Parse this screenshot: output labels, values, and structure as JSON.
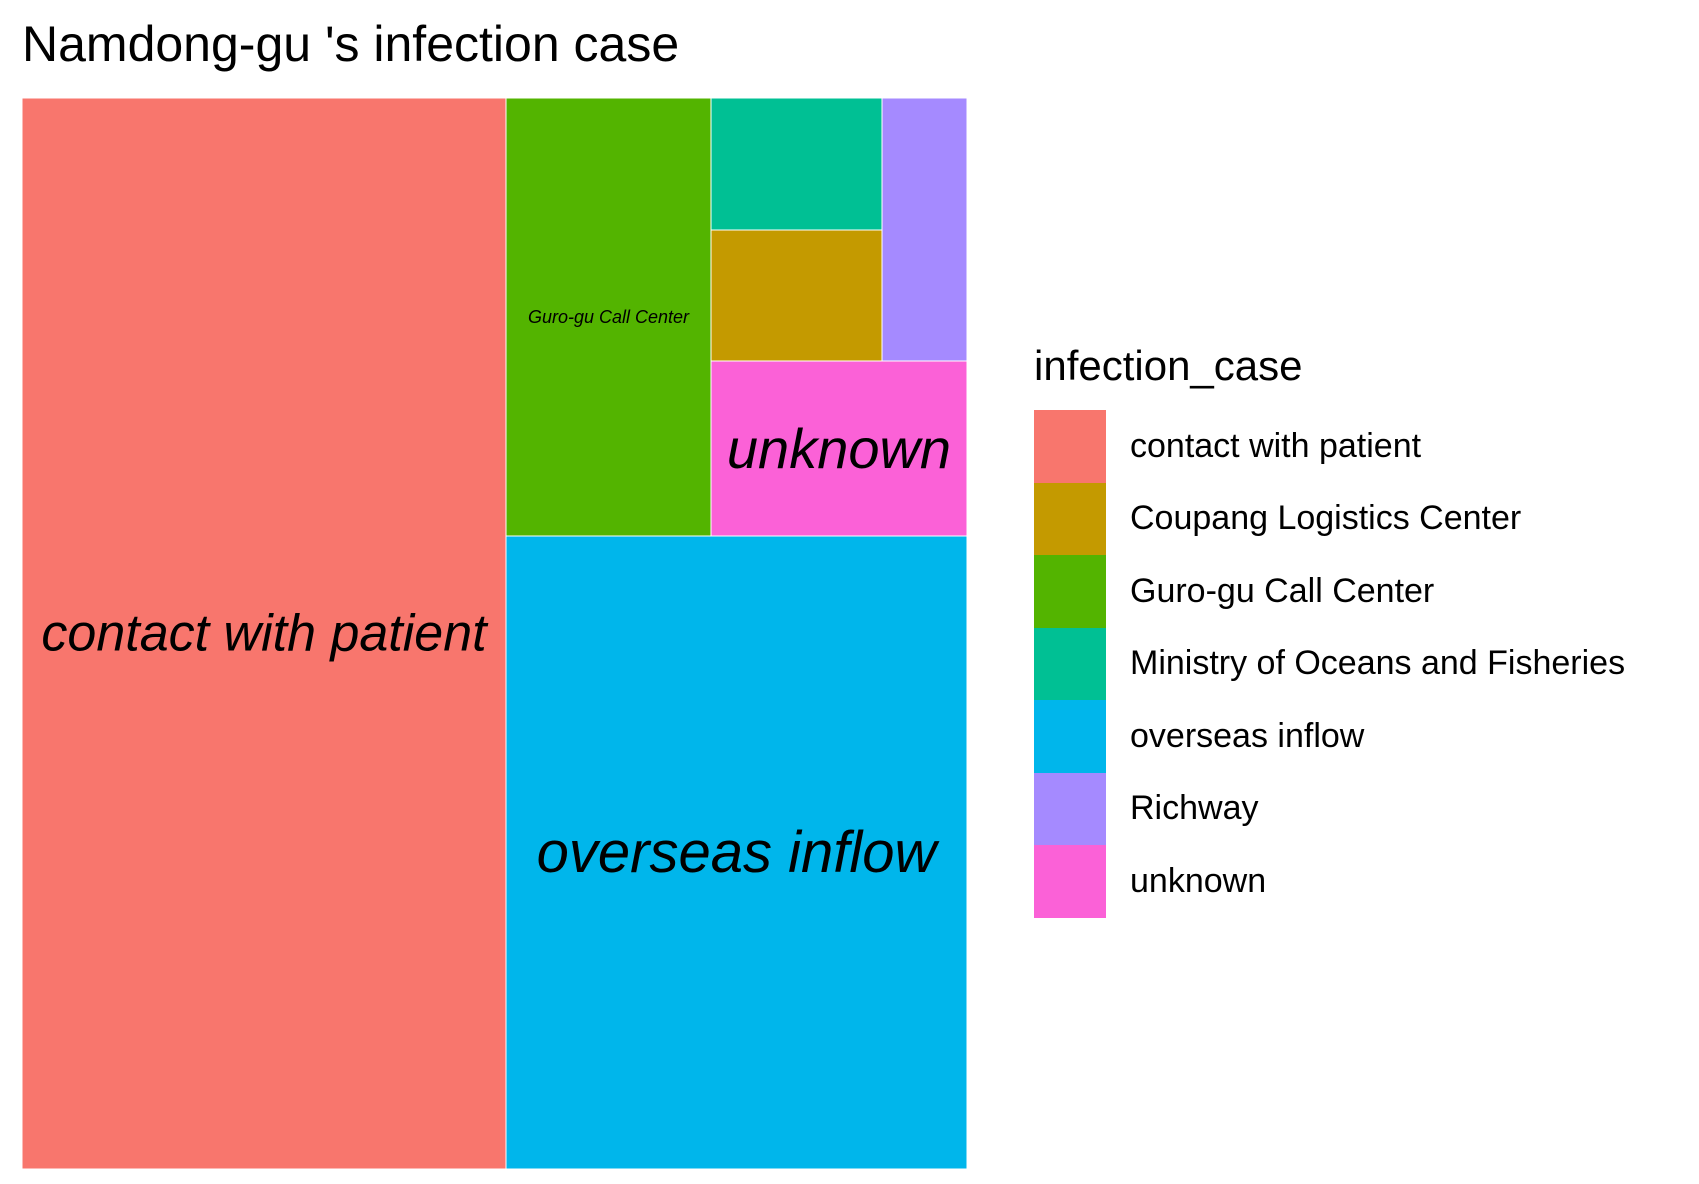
{
  "chart_data": {
    "type": "treemap",
    "title": "Namdong-gu 's infection case",
    "legend_title": "infection_case",
    "legend_position": "right",
    "categories": [
      {
        "name": "contact with patient",
        "value": 45.2,
        "color": "#F8766D",
        "label_shown": true
      },
      {
        "name": "Coupang Logistics Center",
        "value": 1.9,
        "color": "#C49A00",
        "label_shown": false
      },
      {
        "name": "Guro-gu Call Center",
        "value": 7.6,
        "color": "#53B400",
        "label_shown": true
      },
      {
        "name": "Ministry of Oceans and Fisheries",
        "value": 1.9,
        "color": "#00C094",
        "label_shown": false
      },
      {
        "name": "overseas inflow",
        "value": 33.3,
        "color": "#00B6EB",
        "label_shown": true
      },
      {
        "name": "Richway",
        "value": 1.9,
        "color": "#A58AFF",
        "label_shown": false
      },
      {
        "name": "unknown",
        "value": 3.8,
        "color": "#FB61D7",
        "label_shown": true
      }
    ]
  }
}
